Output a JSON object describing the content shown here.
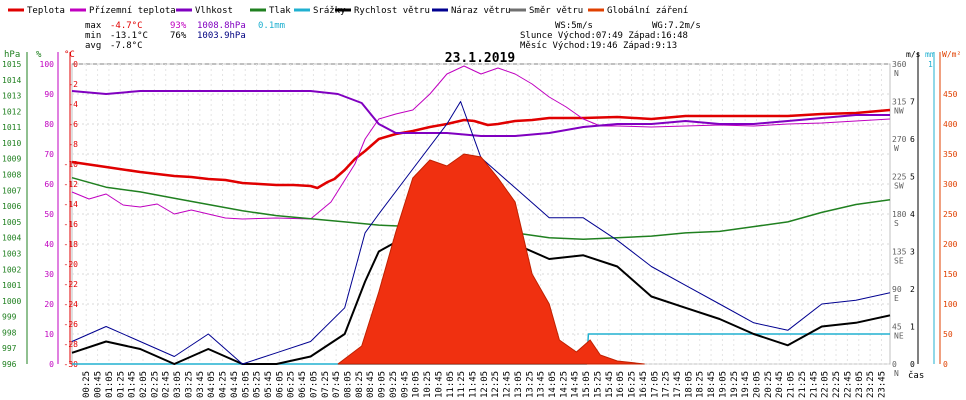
{
  "legend": [
    {
      "label": "Teplota",
      "color": "#e00000"
    },
    {
      "label": "Přízemní teplota",
      "color": "#c000c0"
    },
    {
      "label": "Vlhkost",
      "color": "#8000c0"
    },
    {
      "label": "Tlak",
      "color": "#208020"
    },
    {
      "label": "Srážky",
      "color": "#20b0d0"
    },
    {
      "label": "Rychlost větru",
      "color": "#000000"
    },
    {
      "label": "Náraz větru",
      "color": "#000090"
    },
    {
      "label": "Směr větru",
      "color": "#707070"
    },
    {
      "label": "Globální záření",
      "color": "#e04000"
    }
  ],
  "stats": {
    "max_label": "max",
    "min_label": "min",
    "avg_label": "avg",
    "max_temp": "-4.7°C",
    "max_hum": "93%",
    "max_press": "1008.8hPa",
    "max_rain": "0.1mm",
    "min_temp": "-13.1°C",
    "min_hum": "76%",
    "min_press": "1003.9hPa",
    "avg_temp": "-7.8°C",
    "ws": "WS:5m/s",
    "wg": "WG:7.2m/s",
    "sun": "Slunce Východ:07:49  Západ:16:48",
    "moon": "Měsíc  Východ:19:46  Západ:9:13"
  },
  "chart_data": {
    "type": "line",
    "title": "23.1.2019",
    "xlabel": "čas",
    "x_ticks": [
      "00:25",
      "00:45",
      "01:05",
      "01:25",
      "01:45",
      "02:05",
      "02:25",
      "02:45",
      "03:05",
      "03:25",
      "03:45",
      "04:05",
      "04:25",
      "04:45",
      "05:05",
      "05:25",
      "05:45",
      "06:05",
      "06:25",
      "06:45",
      "07:05",
      "07:25",
      "07:45",
      "08:05",
      "08:25",
      "08:45",
      "09:05",
      "09:25",
      "09:45",
      "10:05",
      "10:25",
      "10:45",
      "11:05",
      "11:25",
      "11:45",
      "12:05",
      "12:25",
      "12:45",
      "13:05",
      "13:25",
      "13:45",
      "14:05",
      "14:25",
      "14:45",
      "15:05",
      "15:25",
      "15:45",
      "16:05",
      "16:25",
      "16:45",
      "17:05",
      "17:25",
      "17:45",
      "18:05",
      "18:25",
      "18:45",
      "19:05",
      "19:25",
      "19:45",
      "20:05",
      "20:25",
      "20:45",
      "21:05",
      "21:25",
      "21:45",
      "22:05",
      "22:25",
      "22:45",
      "23:05",
      "23:25",
      "23:45"
    ],
    "axes": {
      "pressure": {
        "unit": "hPa",
        "range": [
          996,
          1015
        ],
        "ticks": [
          "1015",
          "1014",
          "1013",
          "1012",
          "1011",
          "1010",
          "1009",
          "1008",
          "1007",
          "1006",
          "1005",
          "1004",
          "1003",
          "1002",
          "1001",
          "1000",
          "999",
          "998",
          "997",
          "996"
        ]
      },
      "humidity": {
        "unit": "%",
        "range": [
          0,
          100
        ],
        "ticks": [
          "100",
          "90",
          "80",
          "70",
          "60",
          "50",
          "40",
          "30",
          "20",
          "10",
          "0"
        ]
      },
      "temperature": {
        "unit": "°C",
        "range": [
          -30,
          0
        ],
        "ticks": [
          "0",
          "-2",
          "-4",
          "-6",
          "-8",
          "-10",
          "-12",
          "-14",
          "-16",
          "-18",
          "-20",
          "-22",
          "-24",
          "-26",
          "-28",
          "-30"
        ]
      },
      "direction": {
        "unit": "°",
        "ticks": [
          {
            "deg": "360",
            "dir": "N"
          },
          {
            "deg": "315",
            "dir": "NW"
          },
          {
            "deg": "270",
            "dir": "W"
          },
          {
            "deg": "225",
            "dir": "SW"
          },
          {
            "deg": "180",
            "dir": "S"
          },
          {
            "deg": "135",
            "dir": "SE"
          },
          {
            "deg": "90",
            "dir": "E"
          },
          {
            "deg": "45",
            "dir": "NE"
          },
          {
            "deg": "0",
            "dir": "N"
          }
        ]
      },
      "wind": {
        "unit": "m/s",
        "range": [
          0,
          8
        ],
        "ticks": [
          "8",
          "7",
          "6",
          "5",
          "4",
          "3",
          "2",
          "1",
          "0"
        ]
      },
      "rain": {
        "unit": "mm",
        "range": [
          0,
          1
        ],
        "ticks": [
          "1",
          "0"
        ]
      },
      "radiation": {
        "unit": "W/m²",
        "range": [
          0,
          500
        ],
        "ticks": [
          "450",
          "400",
          "350",
          "300",
          "250",
          "200",
          "150",
          "100",
          "50",
          "0"
        ]
      }
    },
    "series": [
      {
        "name": "Teplota",
        "key": "temp",
        "points": [
          [
            0,
            -9.8
          ],
          [
            1,
            -10.3
          ],
          [
            2,
            -10.8
          ],
          [
            3,
            -11.2
          ],
          [
            3.5,
            -11.3
          ],
          [
            4,
            -11.5
          ],
          [
            4.5,
            -11.6
          ],
          [
            5,
            -11.9
          ],
          [
            5.5,
            -12.0
          ],
          [
            6,
            -12.1
          ],
          [
            6.5,
            -12.1
          ],
          [
            7,
            -12.2
          ],
          [
            7.2,
            -12.4
          ],
          [
            7.5,
            -11.8
          ],
          [
            7.7,
            -11.5
          ],
          [
            8,
            -10.6
          ],
          [
            8.3,
            -9.5
          ],
          [
            8.6,
            -8.7
          ],
          [
            9,
            -7.5
          ],
          [
            9.5,
            -7.0
          ],
          [
            10,
            -6.7
          ],
          [
            10.5,
            -6.3
          ],
          [
            11,
            -6.0
          ],
          [
            11.5,
            -5.6
          ],
          [
            11.8,
            -5.7
          ],
          [
            12.2,
            -6.1
          ],
          [
            12.5,
            -6.0
          ],
          [
            13,
            -5.7
          ],
          [
            13.5,
            -5.6
          ],
          [
            14,
            -5.4
          ],
          [
            15,
            -5.4
          ],
          [
            16,
            -5.3
          ],
          [
            17,
            -5.5
          ],
          [
            18,
            -5.2
          ],
          [
            19,
            -5.2
          ],
          [
            20,
            -5.2
          ],
          [
            21,
            -5.2
          ],
          [
            22,
            -5.0
          ],
          [
            23,
            -4.9
          ],
          [
            24,
            -4.6
          ]
        ]
      },
      {
        "name": "Přízemní teplota",
        "key": "ground",
        "points": [
          [
            0,
            -12.8
          ],
          [
            0.5,
            -13.5
          ],
          [
            1,
            -13.0
          ],
          [
            1.5,
            -14.1
          ],
          [
            2,
            -14.3
          ],
          [
            2.5,
            -14.0
          ],
          [
            3,
            -15.0
          ],
          [
            3.5,
            -14.6
          ],
          [
            4,
            -15.0
          ],
          [
            4.5,
            -15.4
          ],
          [
            5,
            -15.5
          ],
          [
            6,
            -15.4
          ],
          [
            7,
            -15.5
          ],
          [
            7.6,
            -13.8
          ],
          [
            8.3,
            -10.0
          ],
          [
            8.6,
            -7.5
          ],
          [
            9,
            -5.5
          ],
          [
            9.5,
            -5.0
          ],
          [
            10,
            -4.6
          ],
          [
            10.5,
            -3.0
          ],
          [
            11,
            -1.0
          ],
          [
            11.5,
            -0.2
          ],
          [
            12,
            -1.0
          ],
          [
            12.5,
            -0.4
          ],
          [
            13,
            -1.0
          ],
          [
            13.5,
            -2.0
          ],
          [
            14,
            -3.3
          ],
          [
            14.5,
            -4.3
          ],
          [
            15,
            -5.5
          ],
          [
            15.5,
            -6.2
          ],
          [
            16,
            -6.2
          ],
          [
            17,
            -6.3
          ],
          [
            18,
            -6.2
          ],
          [
            19,
            -6.1
          ],
          [
            20,
            -6.2
          ],
          [
            21,
            -6.0
          ],
          [
            22,
            -5.9
          ],
          [
            23,
            -5.7
          ],
          [
            24,
            -5.5
          ]
        ]
      },
      {
        "name": "Vlhkost",
        "key": "hum",
        "points": [
          [
            0,
            91
          ],
          [
            1,
            90
          ],
          [
            2,
            91
          ],
          [
            3,
            91
          ],
          [
            4,
            91
          ],
          [
            5,
            91
          ],
          [
            6,
            91
          ],
          [
            7,
            91
          ],
          [
            7.8,
            90
          ],
          [
            8.5,
            87
          ],
          [
            9,
            80
          ],
          [
            9.5,
            77
          ],
          [
            10,
            77
          ],
          [
            11,
            77
          ],
          [
            12,
            76
          ],
          [
            13,
            76
          ],
          [
            14,
            77
          ],
          [
            15,
            79
          ],
          [
            16,
            80
          ],
          [
            17,
            80
          ],
          [
            18,
            81
          ],
          [
            19,
            80
          ],
          [
            20,
            80
          ],
          [
            21,
            81
          ],
          [
            22,
            82
          ],
          [
            23,
            83
          ],
          [
            24,
            83
          ]
        ]
      },
      {
        "name": "Tlak",
        "key": "press",
        "points": [
          [
            0,
            1007.8
          ],
          [
            1,
            1007.2
          ],
          [
            2,
            1006.9
          ],
          [
            3,
            1006.5
          ],
          [
            4,
            1006.1
          ],
          [
            5,
            1005.7
          ],
          [
            6,
            1005.4
          ],
          [
            7,
            1005.2
          ],
          [
            8,
            1005.0
          ],
          [
            9,
            1004.8
          ],
          [
            10,
            1004.7
          ],
          [
            11,
            1004.6
          ],
          [
            12,
            1004.5
          ],
          [
            13,
            1004.3
          ],
          [
            14,
            1004.0
          ],
          [
            15,
            1003.9
          ],
          [
            16,
            1004.0
          ],
          [
            17,
            1004.1
          ],
          [
            18,
            1004.3
          ],
          [
            19,
            1004.4
          ],
          [
            20,
            1004.7
          ],
          [
            21,
            1005.0
          ],
          [
            22,
            1005.6
          ],
          [
            23,
            1006.1
          ],
          [
            24,
            1006.4
          ]
        ]
      },
      {
        "name": "Srážky",
        "key": "rain",
        "points": [
          [
            0,
            0
          ],
          [
            15.1,
            0
          ],
          [
            15.15,
            0.1
          ],
          [
            24,
            0.1
          ]
        ]
      },
      {
        "name": "Rychlost větru",
        "key": "wind",
        "points": [
          [
            0,
            0.3
          ],
          [
            1,
            0.6
          ],
          [
            2,
            0.4
          ],
          [
            3,
            0
          ],
          [
            4,
            0.4
          ],
          [
            5,
            0
          ],
          [
            6,
            0
          ],
          [
            7,
            0.2
          ],
          [
            8,
            0.8
          ],
          [
            8.6,
            2.2
          ],
          [
            9,
            3.0
          ],
          [
            10,
            3.5
          ],
          [
            11,
            4.4
          ],
          [
            12,
            4.0
          ],
          [
            13,
            3.2
          ],
          [
            14,
            2.8
          ],
          [
            15,
            2.9
          ],
          [
            16,
            2.6
          ],
          [
            17,
            1.8
          ],
          [
            18,
            1.5
          ],
          [
            19,
            1.2
          ],
          [
            20,
            0.8
          ],
          [
            21,
            0.5
          ],
          [
            22,
            1.0
          ],
          [
            23,
            1.1
          ],
          [
            24,
            1.3
          ]
        ]
      },
      {
        "name": "Náraz větru",
        "key": "gust",
        "points": [
          [
            0,
            0.6
          ],
          [
            1,
            1.0
          ],
          [
            2,
            0.6
          ],
          [
            3,
            0.2
          ],
          [
            4,
            0.8
          ],
          [
            5,
            0
          ],
          [
            6,
            0.3
          ],
          [
            7,
            0.6
          ],
          [
            8,
            1.5
          ],
          [
            8.6,
            3.5
          ],
          [
            9,
            4.0
          ],
          [
            10,
            5.2
          ],
          [
            11,
            6.4
          ],
          [
            11.4,
            7.0
          ],
          [
            12,
            5.5
          ],
          [
            13,
            4.7
          ],
          [
            14,
            3.9
          ],
          [
            15,
            3.9
          ],
          [
            16,
            3.3
          ],
          [
            17,
            2.6
          ],
          [
            18,
            2.1
          ],
          [
            19,
            1.6
          ],
          [
            20,
            1.1
          ],
          [
            21,
            0.9
          ],
          [
            22,
            1.6
          ],
          [
            23,
            1.7
          ],
          [
            24,
            1.9
          ]
        ]
      },
      {
        "name": "Globální záření",
        "key": "rad",
        "points": [
          [
            7.8,
            0
          ],
          [
            8.5,
            30
          ],
          [
            9,
            120
          ],
          [
            9.5,
            220
          ],
          [
            10,
            310
          ],
          [
            10.5,
            340
          ],
          [
            11,
            330
          ],
          [
            11.5,
            350
          ],
          [
            12,
            345
          ],
          [
            12.5,
            310
          ],
          [
            13,
            270
          ],
          [
            13.5,
            150
          ],
          [
            14,
            100
          ],
          [
            14.3,
            40
          ],
          [
            14.8,
            20
          ],
          [
            15,
            30
          ],
          [
            15.2,
            40
          ],
          [
            15.5,
            15
          ],
          [
            16,
            5
          ],
          [
            16.8,
            0
          ]
        ]
      }
    ]
  }
}
